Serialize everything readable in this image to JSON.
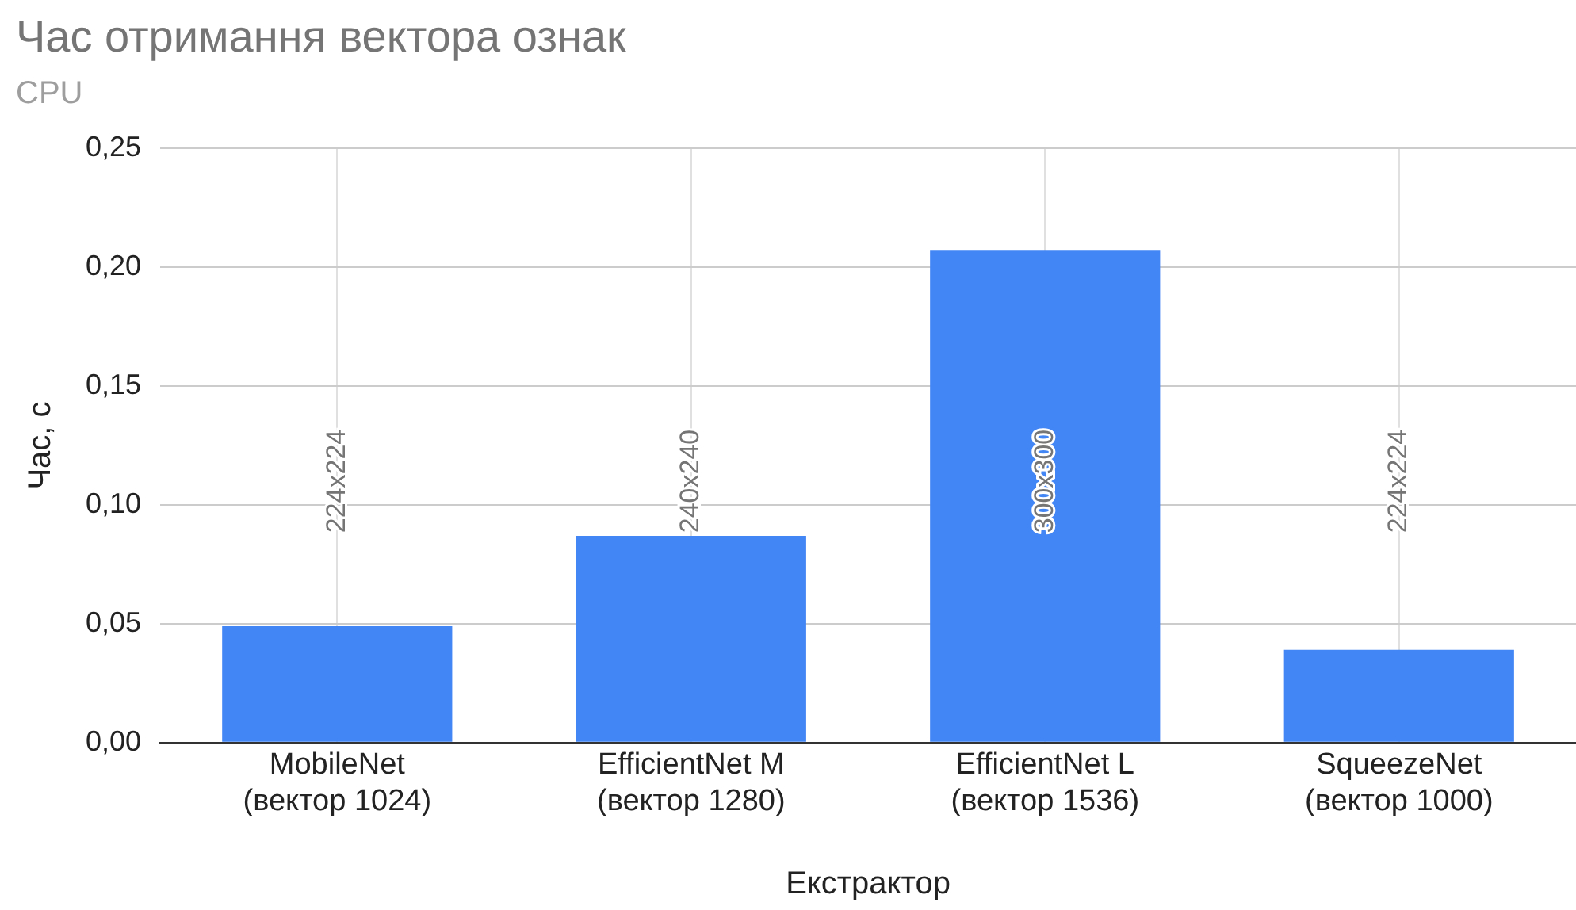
{
  "chart_data": {
    "type": "bar",
    "title": "Час отримання вектора ознак",
    "subtitle": "CPU",
    "xlabel": "Екстрактор",
    "ylabel": "Час, с",
    "categories": [
      "MobileNet\n(вектор 1024)",
      "EfficientNet M\n(вектор 1280)",
      "EfficientNet L\n(вектор 1536)",
      "SqueezeNet\n(вектор 1000)"
    ],
    "values": [
      0.049,
      0.087,
      0.207,
      0.039
    ],
    "color": "#4285f4",
    "ylim": [
      0,
      0.25
    ],
    "yticks": [
      {
        "value": 0,
        "label": "0,00"
      },
      {
        "value": 0.05,
        "label": "0,05"
      },
      {
        "value": 0.1,
        "label": "0,10"
      },
      {
        "value": 0.15,
        "label": "0,15"
      },
      {
        "value": 0.2,
        "label": "0,20"
      },
      {
        "value": 0.25,
        "label": "0,25"
      }
    ],
    "annotations": [
      "224x224",
      "240x240",
      "300x300",
      "224x224"
    ],
    "grid": true,
    "legend": false
  }
}
